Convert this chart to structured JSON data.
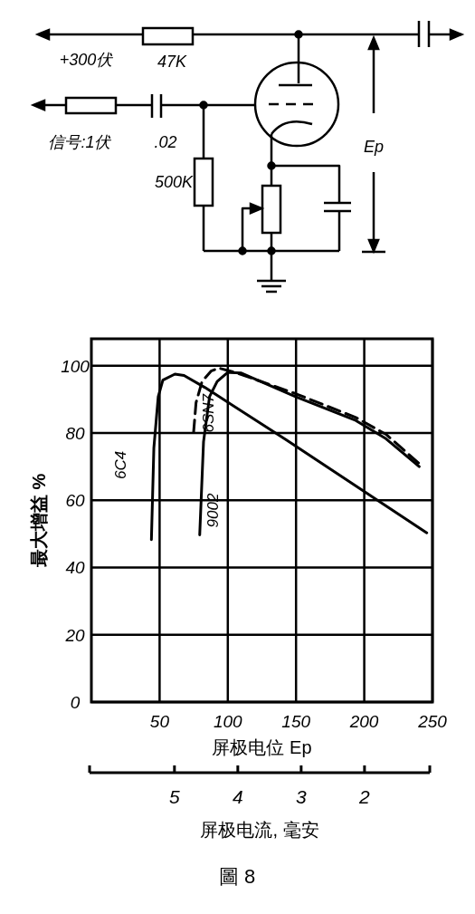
{
  "chart_data": [
    {
      "type": "other",
      "annotations": [
        "+300伏",
        "47K",
        "信号:1伏",
        ".02",
        "500K",
        "Ep"
      ]
    },
    {
      "type": "line",
      "xlabel": "屏极电位 Ep",
      "ylabel": "最大增益 %",
      "x2label": "屏极电流, 毫安",
      "xlim": [
        0,
        250
      ],
      "xticks": [
        50,
        100,
        150,
        200,
        250
      ],
      "ylim": [
        0,
        108
      ],
      "yticks": [
        0,
        20,
        40,
        60,
        80,
        100
      ],
      "x2lim": [
        6.34,
        0.97
      ],
      "x2ticks": [
        5,
        4,
        3,
        2
      ],
      "grid": true,
      "annotations": [
        "圖 8"
      ],
      "series": [
        {
          "name": "6C4",
          "color": "#000000",
          "line_style": "solid",
          "x": [
            44,
            45.8,
            49,
            52.4,
            61.2,
            67.9,
            83.3,
            143,
            245.8
          ],
          "values": [
            48.3,
            75.6,
            90.8,
            95.7,
            97.5,
            97.1,
            93.5,
            77.9,
            50.3
          ]
        },
        {
          "name": "6SN7",
          "color": "#000000",
          "line_style": "dashed",
          "x": [
            74.9,
            76.7,
            81.1,
            87.7,
            93.3,
            105.4,
            149.6,
            193.8,
            215.9,
            241.4
          ],
          "values": [
            80.1,
            89,
            95.3,
            98.4,
            99.3,
            98,
            91.7,
            84.6,
            79.6,
            70.5
          ]
        },
        {
          "name": "9002",
          "color": "#000000",
          "line_style": "solid",
          "x": [
            79.4,
            82.2,
            86.6,
            92.2,
            99.9,
            109.9,
            149.6,
            193.8,
            215.9,
            240.3
          ],
          "values": [
            49.7,
            77.4,
            90.8,
            95.3,
            98,
            97.8,
            90.8,
            83.7,
            78.3,
            70
          ]
        }
      ]
    }
  ]
}
